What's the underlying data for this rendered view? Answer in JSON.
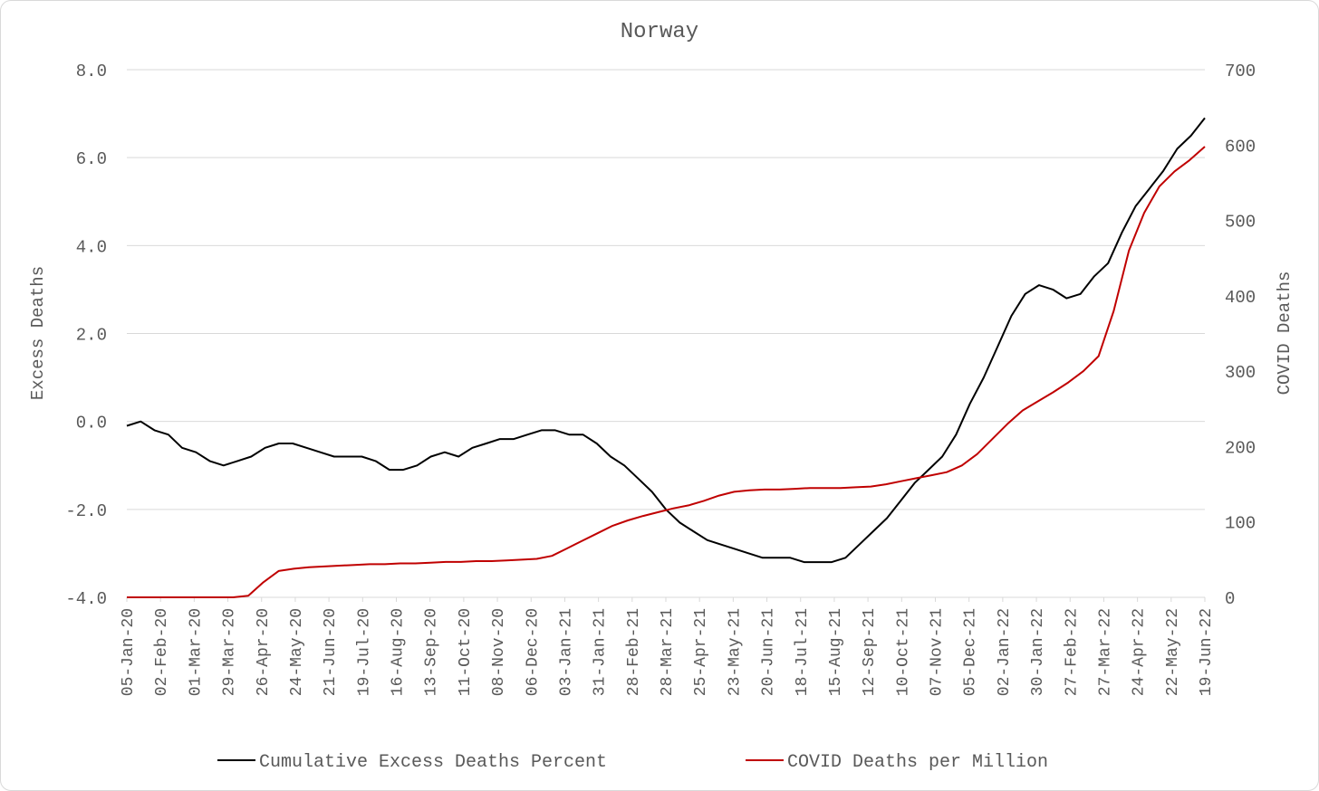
{
  "chart_data": {
    "type": "line",
    "title": "Norway",
    "y_left_label": "Excess Deaths",
    "y_right_label": "COVID Deaths",
    "y_left_range": [
      -4.0,
      8.0
    ],
    "y_left_ticks": [
      "-4.0",
      "-2.0",
      "0.0",
      "2.0",
      "4.0",
      "6.0",
      "8.0"
    ],
    "y_right_range": [
      0,
      700
    ],
    "y_right_ticks": [
      "0",
      "100",
      "200",
      "300",
      "400",
      "500",
      "600",
      "700"
    ],
    "grid": "horizontal",
    "legend_position": "bottom",
    "x_tick_labels": [
      "05-Jan-20",
      "02-Feb-20",
      "01-Mar-20",
      "29-Mar-20",
      "26-Apr-20",
      "24-May-20",
      "21-Jun-20",
      "19-Jul-20",
      "16-Aug-20",
      "13-Sep-20",
      "11-Oct-20",
      "08-Nov-20",
      "06-Dec-20",
      "03-Jan-21",
      "31-Jan-21",
      "28-Feb-21",
      "28-Mar-21",
      "25-Apr-21",
      "23-May-21",
      "20-Jun-21",
      "18-Jul-21",
      "15-Aug-21",
      "12-Sep-21",
      "10-Oct-21",
      "07-Nov-21",
      "05-Dec-21",
      "02-Jan-22",
      "30-Jan-22",
      "27-Feb-22",
      "27-Mar-22",
      "24-Apr-22",
      "22-May-22",
      "19-Jun-22"
    ],
    "series": [
      {
        "name": "Cumulative Excess Deaths Percent",
        "axis": "left",
        "color": "#000000",
        "values": [
          -0.1,
          0.0,
          -0.2,
          -0.3,
          -0.6,
          -0.7,
          -0.9,
          -1.0,
          -0.9,
          -0.8,
          -0.6,
          -0.5,
          -0.5,
          -0.6,
          -0.7,
          -0.8,
          -0.8,
          -0.8,
          -0.9,
          -1.1,
          -1.1,
          -1.0,
          -0.8,
          -0.7,
          -0.8,
          -0.6,
          -0.5,
          -0.4,
          -0.4,
          -0.3,
          -0.2,
          -0.2,
          -0.3,
          -0.3,
          -0.5,
          -0.8,
          -1.0,
          -1.3,
          -1.6,
          -2.0,
          -2.3,
          -2.5,
          -2.7,
          -2.8,
          -2.9,
          -3.0,
          -3.1,
          -3.1,
          -3.1,
          -3.2,
          -3.2,
          -3.2,
          -3.1,
          -2.8,
          -2.5,
          -2.2,
          -1.8,
          -1.4,
          -1.1,
          -0.8,
          -0.3,
          0.4,
          1.0,
          1.7,
          2.4,
          2.9,
          3.1,
          3.0,
          2.8,
          2.9,
          3.3,
          3.6,
          4.3,
          4.9,
          5.3,
          5.7,
          6.2,
          6.5,
          6.9
        ]
      },
      {
        "name": "COVID Deaths per Million",
        "axis": "right",
        "color": "#c00000",
        "values": [
          0,
          0,
          0,
          0,
          0,
          0,
          0,
          0,
          2,
          20,
          35,
          38,
          40,
          41,
          42,
          43,
          44,
          44,
          45,
          45,
          46,
          47,
          47,
          48,
          48,
          49,
          50,
          51,
          55,
          65,
          75,
          85,
          95,
          102,
          108,
          113,
          118,
          122,
          128,
          135,
          140,
          142,
          143,
          143,
          144,
          145,
          145,
          145,
          146,
          147,
          150,
          154,
          158,
          162,
          166,
          175,
          190,
          210,
          230,
          248,
          260,
          272,
          285,
          300,
          320,
          380,
          460,
          510,
          545,
          565,
          580,
          598
        ]
      }
    ]
  }
}
